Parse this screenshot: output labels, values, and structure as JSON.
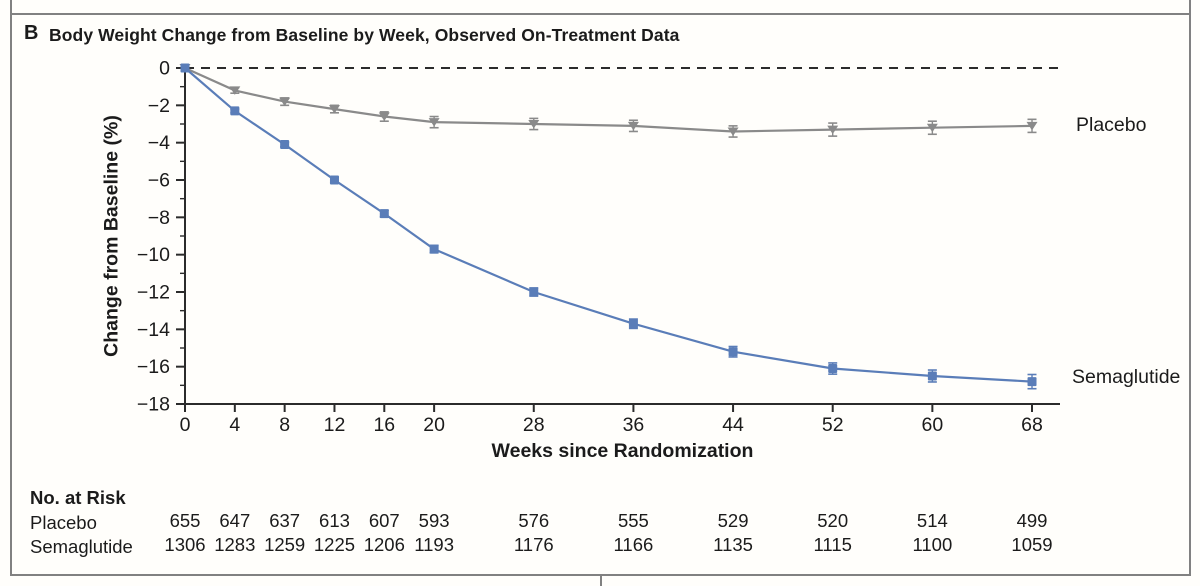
{
  "panel": {
    "label": "B",
    "title": "Body Weight Change from Baseline by Week, Observed On-Treatment Data"
  },
  "chart_data": {
    "type": "line",
    "title": "Body Weight Change from Baseline by Week, Observed On-Treatment Data",
    "xlabel": "Weeks since Randomization",
    "ylabel": "Change from Baseline (%)",
    "x": [
      0,
      4,
      8,
      12,
      16,
      20,
      28,
      36,
      44,
      52,
      60,
      68
    ],
    "ylim": [
      -18,
      0
    ],
    "yticks": [
      0,
      -2,
      -4,
      -6,
      -8,
      -10,
      -12,
      -14,
      -16,
      -18
    ],
    "baseline_dashed_at": 0,
    "legend_position": "right-of-line-ends",
    "grid": false,
    "series": [
      {
        "name": "Placebo",
        "color": "#8a8a8a",
        "marker": "triangle-down",
        "values": [
          0,
          -1.2,
          -1.8,
          -2.2,
          -2.6,
          -2.9,
          -3.0,
          -3.1,
          -3.4,
          -3.3,
          -3.2,
          -3.1
        ],
        "errors": [
          0,
          0.15,
          0.2,
          0.2,
          0.25,
          0.3,
          0.3,
          0.3,
          0.3,
          0.35,
          0.35,
          0.35
        ]
      },
      {
        "name": "Semaglutide",
        "color": "#5a7db8",
        "marker": "square",
        "values": [
          0,
          -2.3,
          -4.1,
          -6.0,
          -7.8,
          -9.7,
          -12.0,
          -13.7,
          -15.2,
          -16.1,
          -16.5,
          -16.8
        ],
        "errors": [
          0,
          0.1,
          0.12,
          0.15,
          0.18,
          0.2,
          0.22,
          0.25,
          0.28,
          0.3,
          0.32,
          0.38
        ]
      }
    ]
  },
  "risk_table": {
    "title": "No. at Risk",
    "rows": [
      {
        "label": "Placebo",
        "values": [
          655,
          647,
          637,
          613,
          607,
          593,
          576,
          555,
          529,
          520,
          514,
          499
        ]
      },
      {
        "label": "Semaglutide",
        "values": [
          1306,
          1283,
          1259,
          1225,
          1206,
          1193,
          1176,
          1166,
          1135,
          1115,
          1100,
          1059
        ]
      }
    ]
  },
  "colors": {
    "semaglutide": "#5a7db8",
    "placebo": "#8a8a8a",
    "axis": "#2b2b2b",
    "panel_border": "#818181"
  }
}
